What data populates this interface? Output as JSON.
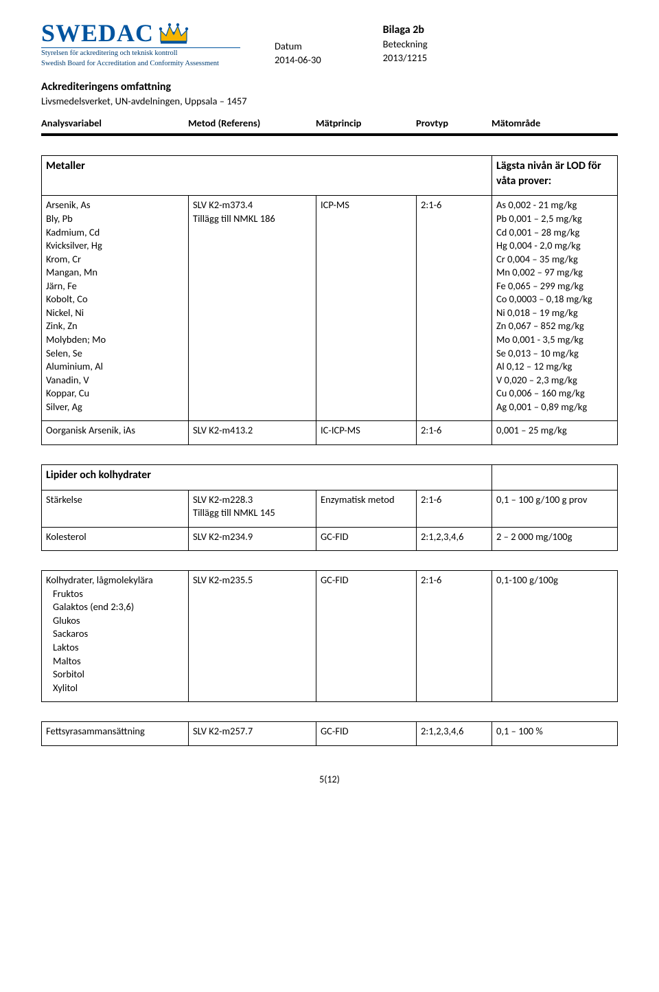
{
  "header": {
    "logo_text": "SWEDAC",
    "tagline_sv": "Styrelsen för ackreditering och teknisk kontroll",
    "tagline_en": "Swedish Board for Accreditation and Conformity Assessment",
    "datum_label": "Datum",
    "datum_value": "2014-06-30",
    "bilaga": "Bilaga 2b",
    "beteckning_label": "Beteckning",
    "beteckning_value": "2013/1215"
  },
  "doc": {
    "title": "Ackrediteringens omfattning",
    "subtitle": "Livsmedelsverket, UN-avdelningen, Uppsala – 1457"
  },
  "cols": {
    "c1": "Analysvariabel",
    "c2": "Metod (Referens)",
    "c3": "Mätprincip",
    "c4": "Provtyp",
    "c5": "Mätområde"
  },
  "metals": {
    "section": "Metaller",
    "lod_note": "Lägsta nivån är LOD för våta prover:",
    "list": "Arsenik, As\nBly, Pb\nKadmium, Cd\nKvicksilver, Hg\nKrom, Cr\nMangan, Mn\nJärn, Fe\nKobolt, Co\nNickel, Ni\nZink, Zn\nMolybden; Mo\nSelen, Se\nAluminium, Al\nVanadin, V\nKoppar, Cu\nSilver, Ag",
    "method": "SLV K2-m373.4\nTillägg till NMKL 186",
    "principle": "ICP-MS",
    "provtyp": "2:1-6",
    "ranges": "As 0,002 - 21 mg/kg\nPb 0,001 – 2,5 mg/kg\nCd 0,001 – 28 mg/kg\nHg 0,004 - 2,0 mg/kg\nCr 0,004 – 35 mg/kg\nMn 0,002 – 97 mg/kg\nFe  0,065 – 299 mg/kg\nCo 0,0003 – 0,18 mg/kg\nNi 0,018 – 19 mg/kg\nZn 0,067 – 852 mg/kg\nMo 0,001 - 3,5 mg/kg\nSe 0,013 – 10 mg/kg\nAl 0,12 – 12 mg/kg\nV 0,020 – 2,3 mg/kg\nCu 0,006 – 160 mg/kg\nAg 0,001 – 0,89 mg/kg",
    "ias": {
      "name": "Oorganisk Arsenik, iAs",
      "method": "SLV K2-m413.2",
      "principle": "IC-ICP-MS",
      "provtyp": "2:1-6",
      "range": "0,001 – 25 mg/kg"
    }
  },
  "lipids": {
    "section": "Lipider och kolhydrater",
    "rows": [
      {
        "name": "Stärkelse",
        "method": "SLV K2-m228.3\nTillägg till NMKL 145",
        "principle": "Enzymatisk metod",
        "provtyp": "2:1-6",
        "range": "0,1 – 100 g/100 g prov"
      },
      {
        "name": "Kolesterol",
        "method": "SLV K2-m234.9",
        "principle": "GC-FID",
        "provtyp": "2:1,2,3,4,6",
        "range": "2 – 2 000 mg/100g"
      }
    ],
    "carb": {
      "name": "Kolhydrater, lågmolekylära",
      "sub": "Fruktos\nGalaktos (end 2:3,6)\nGlukos\nSackaros\nLaktos\nMaltos\nSorbitol\nXylitol",
      "method": "SLV K2-m235.5",
      "principle": "GC-FID",
      "provtyp": "2:1-6",
      "range": "0,1-100 g/100g"
    },
    "fat": {
      "name": "Fettsyrasammansättning",
      "method": "SLV K2-m257.7",
      "principle": "GC-FID",
      "provtyp": "2:1,2,3,4,6",
      "range": "0,1 – 100 %"
    }
  },
  "pagenum": "5(12)"
}
